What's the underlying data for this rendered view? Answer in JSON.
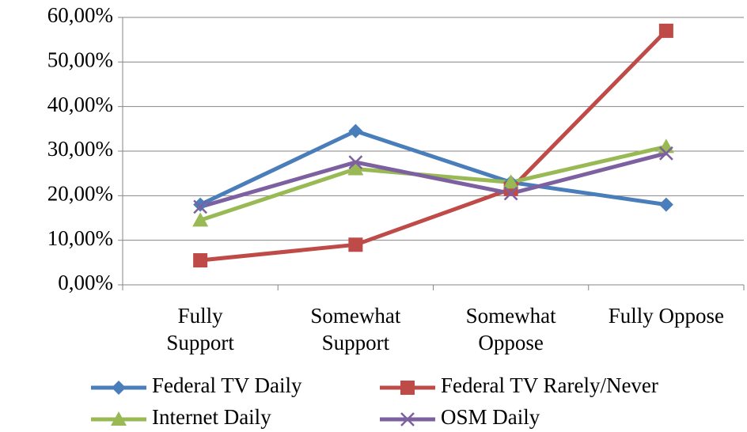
{
  "chart_data": {
    "type": "line",
    "categories": [
      "Fully\nSupport",
      "Somewhat\nSupport",
      "Somewhat\nOppose",
      "Fully Oppose"
    ],
    "series": [
      {
        "name": "Federal TV Daily",
        "color": "#4a7ebb",
        "marker": "diamond",
        "values": [
          18,
          34.5,
          23,
          18
        ]
      },
      {
        "name": "Federal TV Rarely/Never",
        "color": "#be4b48",
        "marker": "square",
        "values": [
          5.5,
          9,
          21.5,
          57
        ]
      },
      {
        "name": "Internet Daily",
        "color": "#98b954",
        "marker": "triangle",
        "values": [
          14.5,
          26,
          23,
          31
        ]
      },
      {
        "name": "OSM Daily",
        "color": "#7d60a0",
        "marker": "x",
        "values": [
          17.5,
          27.5,
          20.5,
          29.5
        ]
      }
    ],
    "ylim": [
      0,
      60
    ],
    "yticks": [
      {
        "value": 0,
        "label": "0,00%"
      },
      {
        "value": 10,
        "label": "10,00%"
      },
      {
        "value": 20,
        "label": "20,00%"
      },
      {
        "value": 30,
        "label": "30,00%"
      },
      {
        "value": 40,
        "label": "40,00%"
      },
      {
        "value": 50,
        "label": "50,00%"
      },
      {
        "value": 60,
        "label": "60,00%"
      }
    ],
    "grid": true,
    "legend": "bottom"
  }
}
